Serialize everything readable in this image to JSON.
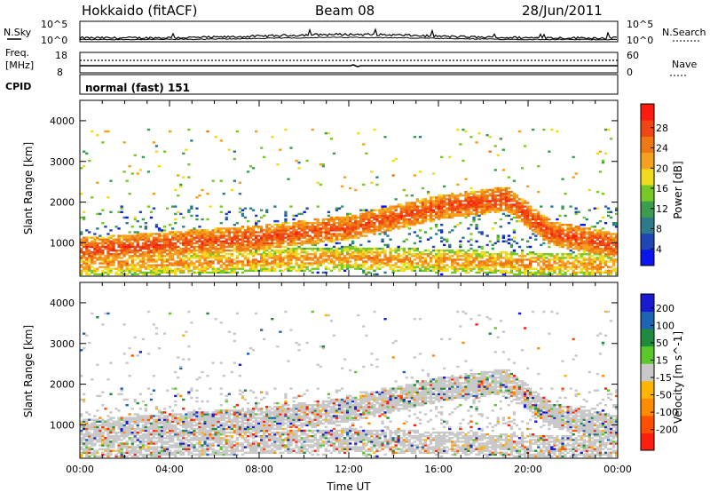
{
  "header": {
    "station": "Hokkaido (fitACF)",
    "beam": "Beam 08",
    "date": "28/Jun/2011"
  },
  "summary": {
    "nsky_label": "N.Sky",
    "nsky_ticks": [
      "10^5",
      "10^0"
    ],
    "nsearch_label": "N.Search",
    "nsearch_ticks": [
      "10^5",
      "10^0"
    ],
    "freq_label_line1": "Freq.",
    "freq_label_line2": "[MHz]",
    "freq_ticks": [
      "18",
      "8"
    ],
    "nave_label": "Nave",
    "nave_ticks": [
      "60",
      "0"
    ],
    "cpid_label": "CPID",
    "cpid_value": "normal (fast) 151"
  },
  "chart_data": [
    {
      "type": "heatmap",
      "panel": "power",
      "ylabel": "Slant Range [km]",
      "yticks": [
        "1000",
        "2000",
        "3000",
        "4000"
      ],
      "ylim": [
        180,
        4500
      ],
      "xlim": [
        0,
        24
      ],
      "colorbar_label": "Power [dB]",
      "colorbar_ticks": [
        "4",
        "8",
        "12",
        "16",
        "20",
        "24",
        "28"
      ],
      "colorbar_colors": [
        "#0a14f0",
        "#1e46b4",
        "#2e7a8c",
        "#3c9c50",
        "#78c828",
        "#f0dc1e",
        "#f5a01e",
        "#f07814",
        "#f04614",
        "#ff1a10"
      ],
      "features": [
        {
          "name": "main echo band",
          "points": [
            [
              0,
              800
            ],
            [
              4,
              950
            ],
            [
              8,
              1100
            ],
            [
              12,
              1350
            ],
            [
              16,
              1850
            ],
            [
              19,
              2050
            ],
            [
              21,
              1200
            ],
            [
              24,
              900
            ]
          ]
        },
        {
          "name": "near-range band",
          "points": [
            [
              0,
              450
            ],
            [
              6,
              500
            ],
            [
              12,
              600
            ],
            [
              18,
              500
            ],
            [
              24,
              400
            ]
          ]
        }
      ]
    },
    {
      "type": "heatmap",
      "panel": "velocity",
      "ylabel": "Slant Range [km]",
      "yticks": [
        "1000",
        "2000",
        "3000",
        "4000"
      ],
      "ylim": [
        180,
        4500
      ],
      "xlim": [
        0,
        24
      ],
      "xlabel": "Time UT",
      "xticks": [
        "00:00",
        "04:00",
        "08:00",
        "12:00",
        "16:00",
        "20:00",
        "00:00"
      ],
      "colorbar_label": "Velocity [m s^-1]",
      "colorbar_ticks": [
        "200",
        "100",
        "50",
        "15",
        "-15",
        "-50",
        "-100",
        "-200"
      ],
      "colorbar_colors": [
        "#1a1ad2",
        "#1e64b4",
        "#1e8c3c",
        "#5ac828",
        "#c8c8c8",
        "#ffb400",
        "#ff8c00",
        "#ff5000",
        "#ff1e10"
      ],
      "ground_scatter_color": "#c8c8c8"
    }
  ]
}
